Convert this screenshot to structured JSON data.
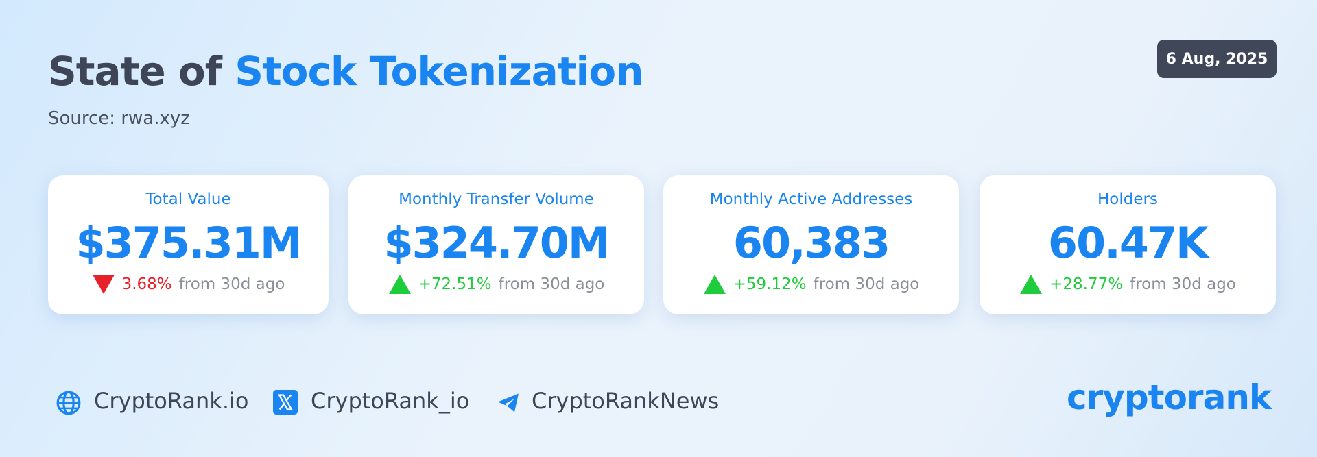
{
  "header": {
    "title_prefix": "State of",
    "title_highlight": "Stock Tokenization",
    "source": "Source: rwa.xyz",
    "date": "6 Aug, 2025"
  },
  "cards": [
    {
      "label": "Total Value",
      "value": "$375.31M",
      "change": "3.68%",
      "direction": "down",
      "suffix": "from 30d ago"
    },
    {
      "label": "Monthly Transfer Volume",
      "value": "$324.70M",
      "change": "+72.51%",
      "direction": "up",
      "suffix": "from 30d ago"
    },
    {
      "label": "Monthly Active Addresses",
      "value": "60,383",
      "change": "+59.12%",
      "direction": "up",
      "suffix": "from 30d ago"
    },
    {
      "label": "Holders",
      "value": "60.47K",
      "change": "+28.77%",
      "direction": "up",
      "suffix": "from 30d ago"
    }
  ],
  "footer": {
    "links": [
      "CryptoRank.io",
      "CryptoRank_io",
      "CryptoRankNews"
    ],
    "logo": "cryptorank"
  }
}
